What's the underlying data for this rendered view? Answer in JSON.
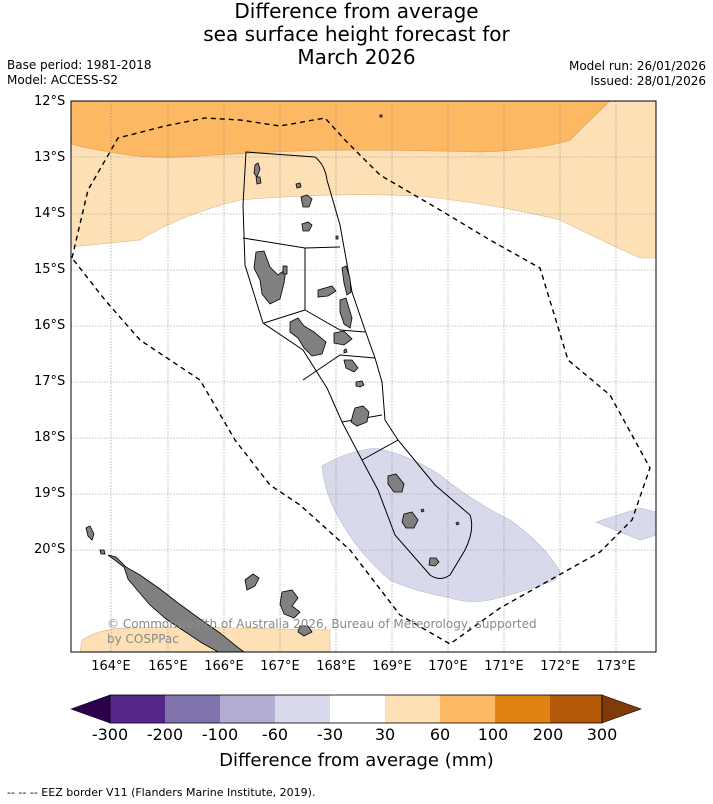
{
  "header": {
    "title_line1": "Difference from average",
    "title_line2": "sea surface height forecast for",
    "title_line3": "March 2026",
    "base_period": "Base period: 1981-2018",
    "model": "Model: ACCESS-S2",
    "model_run": "Model run: 26/01/2026",
    "issued": "Issued: 28/01/2026"
  },
  "map": {
    "lat_labels": [
      "12°S",
      "13°S",
      "14°S",
      "15°S",
      "16°S",
      "17°S",
      "18°S",
      "19°S",
      "20°S"
    ],
    "lon_labels": [
      "164°E",
      "165°E",
      "166°E",
      "167°E",
      "168°E",
      "169°E",
      "170°E",
      "171°E",
      "172°E",
      "173°E"
    ],
    "copyright": "© Commonwealth of Australia 2026, Bureau of Meteorology, supported by COSPPac",
    "land_color": "#808080",
    "eez_style": "dashed black"
  },
  "colorbar": {
    "ticks": [
      "-300",
      "-200",
      "-100",
      "-60",
      "-30",
      "30",
      "60",
      "100",
      "200",
      "300"
    ],
    "colors": [
      "#2d004b",
      "#542788",
      "#8073ac",
      "#b2abd2",
      "#d8daeb",
      "#ffffff",
      "#fee0b6",
      "#fdb863",
      "#e08214",
      "#b35806",
      "#7f3b08"
    ],
    "label": "Difference from average (mm)"
  },
  "footnote": "--  --  -- EEZ border V11 (Flanders Marine Institute, 2019)."
}
